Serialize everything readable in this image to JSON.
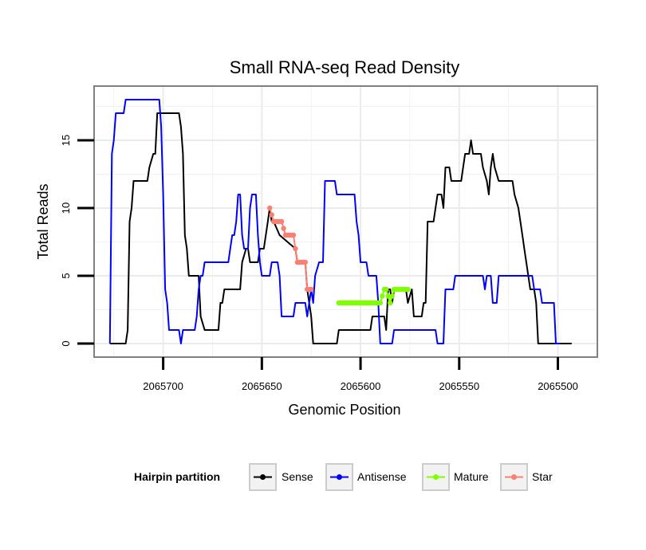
{
  "chart_data": {
    "type": "line",
    "title": "Small RNA-seq Read Density",
    "xlabel": "Genomic Position",
    "ylabel": "Total Reads",
    "xlim": [
      2065735,
      2065480
    ],
    "x_reversed": true,
    "ylim": [
      -1,
      19
    ],
    "x_ticks": [
      2065700,
      2065650,
      2065600,
      2065550,
      2065500
    ],
    "x_tick_labels": [
      "2065700",
      "2065650",
      "2065600",
      "2065550",
      "2065500"
    ],
    "y_ticks": [
      0,
      5,
      10,
      15
    ],
    "y_tick_labels": [
      "0",
      "5",
      "10",
      "15"
    ],
    "grid": true,
    "legend": {
      "title": "Hairpin partition",
      "position": "bottom",
      "entries": [
        {
          "label": "Sense",
          "color": "#000000"
        },
        {
          "label": "Antisense",
          "color": "#0000ff"
        },
        {
          "label": "Mature",
          "color": "#7fff00"
        },
        {
          "label": "Star",
          "color": "#fa8072"
        }
      ]
    },
    "series": [
      {
        "name": "Sense",
        "color": "#000000",
        "markers": false,
        "points": [
          [
            2065727,
            0
          ],
          [
            2065719,
            0
          ],
          [
            2065718,
            1
          ],
          [
            2065717,
            9
          ],
          [
            2065716,
            10
          ],
          [
            2065715,
            12
          ],
          [
            2065708,
            12
          ],
          [
            2065707,
            13
          ],
          [
            2065705,
            14
          ],
          [
            2065704,
            14
          ],
          [
            2065703,
            17
          ],
          [
            2065692,
            17
          ],
          [
            2065691,
            16
          ],
          [
            2065690,
            14
          ],
          [
            2065689,
            8
          ],
          [
            2065688,
            7
          ],
          [
            2065687,
            5
          ],
          [
            2065682,
            5
          ],
          [
            2065681,
            2
          ],
          [
            2065679,
            1
          ],
          [
            2065672,
            1
          ],
          [
            2065671,
            3
          ],
          [
            2065670,
            3
          ],
          [
            2065669,
            4
          ],
          [
            2065661,
            4
          ],
          [
            2065660,
            6
          ],
          [
            2065658,
            7
          ],
          [
            2065657,
            7
          ],
          [
            2065656,
            6
          ],
          [
            2065652,
            6
          ],
          [
            2065651,
            7
          ],
          [
            2065649,
            7
          ],
          [
            2065648,
            8
          ],
          [
            2065647,
            9
          ],
          [
            2065646,
            10
          ],
          [
            2065645,
            9
          ],
          [
            2065644,
            9
          ],
          [
            2065641,
            8
          ],
          [
            2065633,
            7
          ],
          [
            2065632,
            6
          ],
          [
            2065628,
            6
          ],
          [
            2065627,
            4
          ],
          [
            2065625,
            2
          ],
          [
            2065624,
            0
          ],
          [
            2065612,
            0
          ],
          [
            2065611,
            1
          ],
          [
            2065595,
            1
          ],
          [
            2065594,
            2
          ],
          [
            2065588,
            2
          ],
          [
            2065587,
            1
          ],
          [
            2065586,
            4
          ],
          [
            2065585,
            4
          ],
          [
            2065584,
            3
          ],
          [
            2065583,
            4
          ],
          [
            2065580,
            4
          ],
          [
            2065577,
            4
          ],
          [
            2065576,
            3
          ],
          [
            2065574,
            4
          ],
          [
            2065573,
            2
          ],
          [
            2065569,
            2
          ],
          [
            2065568,
            3
          ],
          [
            2065567,
            3
          ],
          [
            2065566,
            9
          ],
          [
            2065563,
            9
          ],
          [
            2065562,
            10
          ],
          [
            2065561,
            11
          ],
          [
            2065559,
            11
          ],
          [
            2065558,
            10
          ],
          [
            2065557,
            13
          ],
          [
            2065555,
            13
          ],
          [
            2065554,
            12
          ],
          [
            2065549,
            12
          ],
          [
            2065548,
            13
          ],
          [
            2065547,
            14
          ],
          [
            2065545,
            14
          ],
          [
            2065544,
            15
          ],
          [
            2065543,
            14
          ],
          [
            2065539,
            14
          ],
          [
            2065538,
            13
          ],
          [
            2065536,
            12
          ],
          [
            2065535,
            11
          ],
          [
            2065534,
            13
          ],
          [
            2065533,
            14
          ],
          [
            2065532,
            13
          ],
          [
            2065530,
            12
          ],
          [
            2065523,
            12
          ],
          [
            2065522,
            11
          ],
          [
            2065520,
            10
          ],
          [
            2065518,
            8
          ],
          [
            2065517,
            7
          ],
          [
            2065515,
            5
          ],
          [
            2065514,
            4
          ],
          [
            2065512,
            4
          ],
          [
            2065511,
            3
          ],
          [
            2065510,
            0
          ],
          [
            2065493,
            0
          ]
        ]
      },
      {
        "name": "Antisense",
        "color": "#0000ff",
        "markers": false,
        "points": [
          [
            2065727,
            0
          ],
          [
            2065726,
            14
          ],
          [
            2065725,
            15
          ],
          [
            2065724,
            17
          ],
          [
            2065720,
            17
          ],
          [
            2065719,
            18
          ],
          [
            2065702,
            18
          ],
          [
            2065701,
            16
          ],
          [
            2065700,
            11
          ],
          [
            2065699,
            4
          ],
          [
            2065698,
            3
          ],
          [
            2065697,
            1
          ],
          [
            2065692,
            1
          ],
          [
            2065691,
            0
          ],
          [
            2065690,
            1
          ],
          [
            2065684,
            1
          ],
          [
            2065683,
            2
          ],
          [
            2065682,
            4
          ],
          [
            2065681,
            5
          ],
          [
            2065680,
            5
          ],
          [
            2065679,
            6
          ],
          [
            2065667,
            6
          ],
          [
            2065666,
            7
          ],
          [
            2065665,
            8
          ],
          [
            2065664,
            8
          ],
          [
            2065663,
            9
          ],
          [
            2065662,
            11
          ],
          [
            2065661,
            11
          ],
          [
            2065660,
            8
          ],
          [
            2065659,
            7
          ],
          [
            2065657,
            7
          ],
          [
            2065656,
            10
          ],
          [
            2065655,
            11
          ],
          [
            2065653,
            11
          ],
          [
            2065652,
            8
          ],
          [
            2065651,
            6
          ],
          [
            2065650,
            5
          ],
          [
            2065646,
            5
          ],
          [
            2065645,
            6
          ],
          [
            2065642,
            6
          ],
          [
            2065641,
            5
          ],
          [
            2065640,
            2
          ],
          [
            2065634,
            2
          ],
          [
            2065633,
            3
          ],
          [
            2065628,
            3
          ],
          [
            2065627,
            2
          ],
          [
            2065626,
            3
          ],
          [
            2065625,
            4
          ],
          [
            2065624,
            3
          ],
          [
            2065623,
            5
          ],
          [
            2065621,
            6
          ],
          [
            2065619,
            6
          ],
          [
            2065618,
            12
          ],
          [
            2065613,
            12
          ],
          [
            2065612,
            11
          ],
          [
            2065603,
            11
          ],
          [
            2065602,
            9
          ],
          [
            2065601,
            8
          ],
          [
            2065600,
            6
          ],
          [
            2065597,
            6
          ],
          [
            2065596,
            5
          ],
          [
            2065592,
            5
          ],
          [
            2065591,
            3
          ],
          [
            2065590,
            0
          ],
          [
            2065584,
            0
          ],
          [
            2065583,
            1
          ],
          [
            2065562,
            1
          ],
          [
            2065561,
            0
          ],
          [
            2065558,
            0
          ],
          [
            2065557,
            4
          ],
          [
            2065553,
            4
          ],
          [
            2065552,
            5
          ],
          [
            2065538,
            5
          ],
          [
            2065537,
            4
          ],
          [
            2065536,
            5
          ],
          [
            2065534,
            5
          ],
          [
            2065533,
            3
          ],
          [
            2065531,
            3
          ],
          [
            2065530,
            5
          ],
          [
            2065513,
            5
          ],
          [
            2065512,
            4
          ],
          [
            2065509,
            4
          ],
          [
            2065508,
            3
          ],
          [
            2065502,
            3
          ],
          [
            2065501,
            0
          ],
          [
            2065499,
            0
          ]
        ]
      },
      {
        "name": "Mature",
        "color": "#7fff00",
        "markers": true,
        "points": [
          [
            2065611,
            3
          ],
          [
            2065608,
            3
          ],
          [
            2065605,
            3
          ],
          [
            2065602,
            3
          ],
          [
            2065599,
            3
          ],
          [
            2065596,
            3
          ],
          [
            2065593,
            3
          ],
          [
            2065590,
            3
          ],
          [
            2065588,
            4
          ],
          [
            2065587,
            4
          ],
          [
            2065585,
            3
          ],
          [
            2065583,
            4
          ],
          [
            2065581,
            4
          ],
          [
            2065579,
            4
          ],
          [
            2065577,
            4
          ],
          [
            2065576,
            4
          ]
        ]
      },
      {
        "name": "Star",
        "color": "#fa8072",
        "markers": true,
        "points": [
          [
            2065646,
            10
          ],
          [
            2065644,
            9
          ],
          [
            2065642,
            9
          ],
          [
            2065640,
            9
          ],
          [
            2065638,
            8
          ],
          [
            2065636,
            8
          ],
          [
            2065634,
            8
          ],
          [
            2065633,
            7
          ],
          [
            2065632,
            6
          ],
          [
            2065630,
            6
          ],
          [
            2065628,
            6
          ],
          [
            2065627,
            4
          ],
          [
            2065625,
            4
          ]
        ]
      }
    ]
  }
}
